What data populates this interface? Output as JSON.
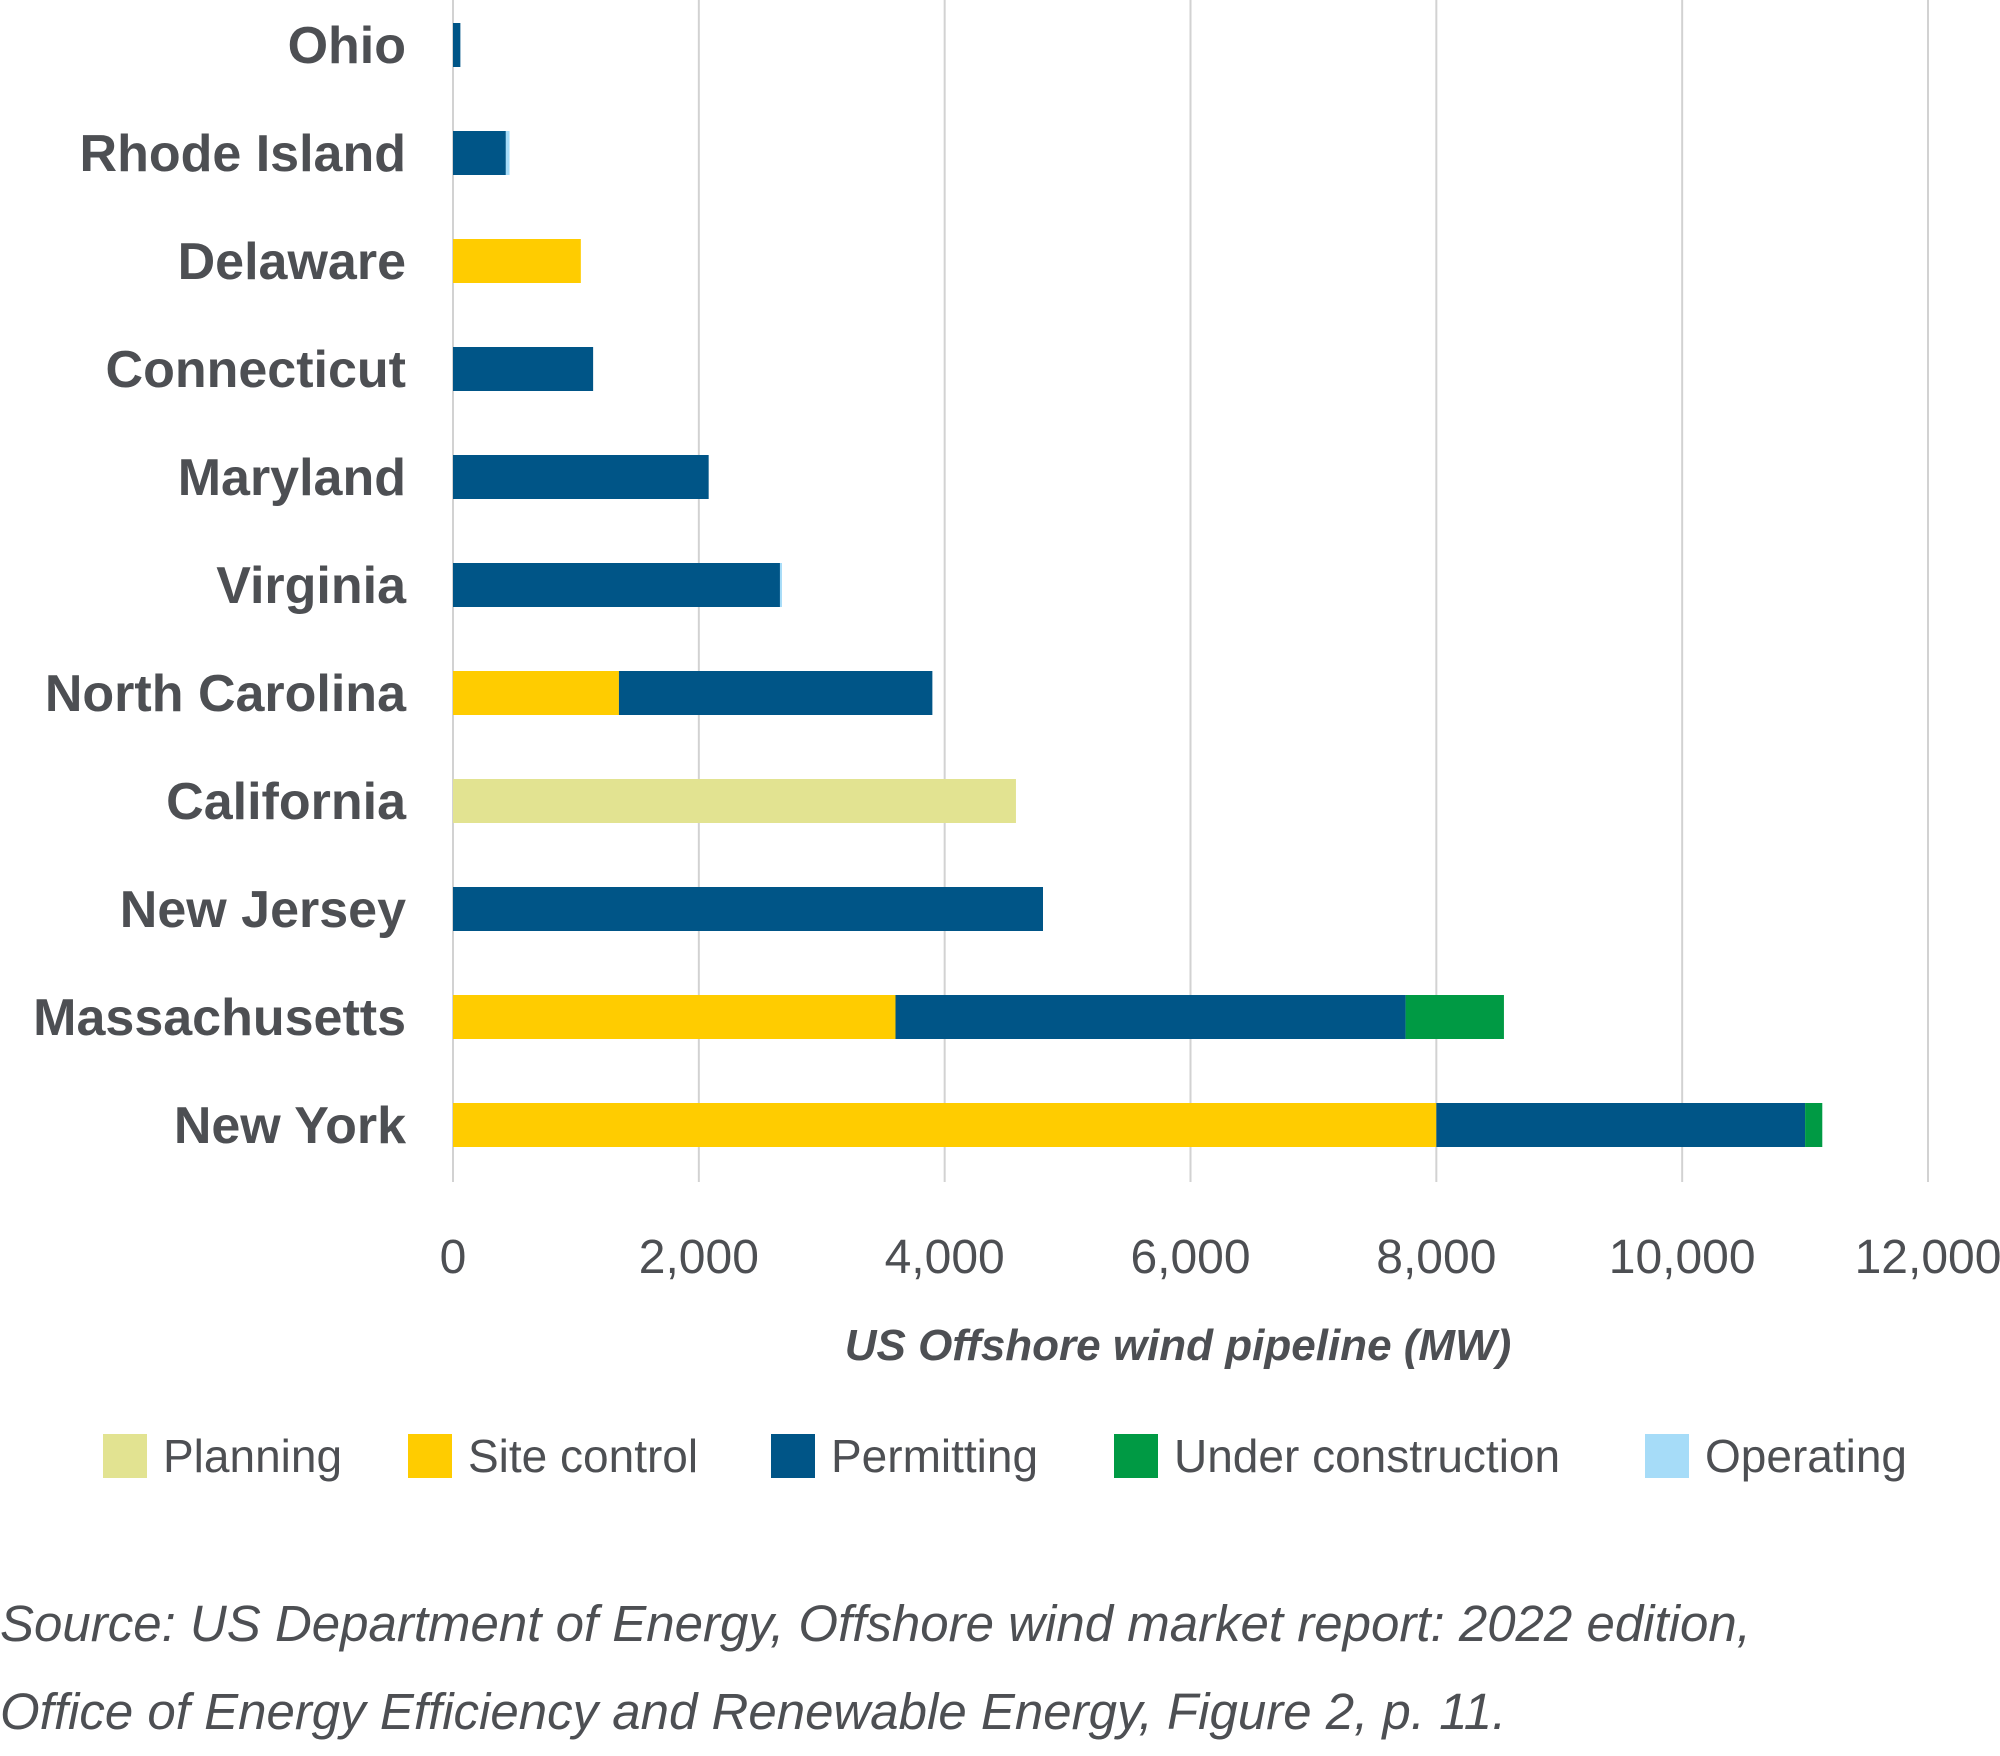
{
  "chart_data": {
    "type": "bar",
    "orientation": "horizontal",
    "stacked": true,
    "title": "",
    "xlabel": "US Offshore wind pipeline (MW)",
    "ylabel": "",
    "xlim": [
      0,
      12000
    ],
    "x_ticks": [
      0,
      2000,
      4000,
      6000,
      8000,
      10000,
      12000
    ],
    "x_tick_labels": [
      "0",
      "2,000",
      "4,000",
      "6,000",
      "8,000",
      "10,000",
      "12,000"
    ],
    "grid": true,
    "legend_position": "bottom",
    "categories": [
      "Ohio",
      "Rhode Island",
      "Delaware",
      "Connecticut",
      "Maryland",
      "Virginia",
      "North Carolina",
      "California",
      "New Jersey",
      "Massachusetts",
      "New York"
    ],
    "series": [
      {
        "name": "Planning",
        "color": "#e2e391",
        "values": [
          0,
          0,
          0,
          0,
          0,
          0,
          0,
          4580,
          0,
          0,
          0
        ]
      },
      {
        "name": "Site control",
        "color": "#ffcc00",
        "values": [
          0,
          0,
          1040,
          0,
          0,
          0,
          1350,
          0,
          0,
          3600,
          8000
        ]
      },
      {
        "name": "Permitting",
        "color": "#005587",
        "values": [
          60,
          430,
          0,
          1140,
          2080,
          2660,
          2550,
          0,
          4800,
          4150,
          3000
        ]
      },
      {
        "name": "Under construction",
        "color": "#009a44",
        "values": [
          0,
          0,
          0,
          0,
          0,
          0,
          0,
          0,
          0,
          800,
          140
        ]
      },
      {
        "name": "Operating",
        "color": "#a6dcf8",
        "values": [
          0,
          30,
          0,
          0,
          0,
          12,
          0,
          0,
          0,
          0,
          0
        ]
      }
    ]
  },
  "source": {
    "line1": "Source: US Department of Energy, Offshore wind market report: 2022 edition,",
    "line2": "Office of Energy Efficiency and Renewable Energy, Figure 2, p. 11."
  }
}
